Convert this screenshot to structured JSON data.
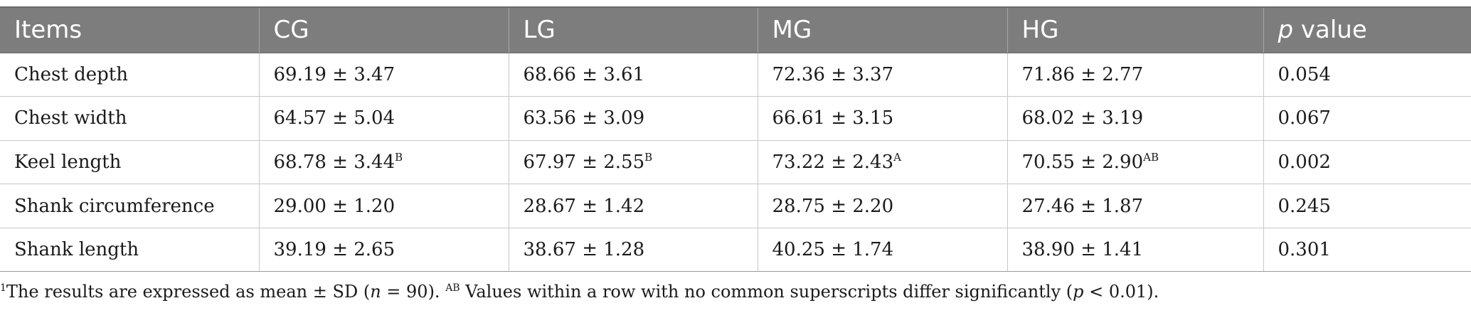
{
  "table": {
    "headers": [
      "Items",
      "CG",
      "LG",
      "MG",
      "HG",
      "value"
    ],
    "header_p_symbol": "p",
    "rows": [
      {
        "item": "Chest depth",
        "cells": [
          {
            "value": "69.19 ± 3.47",
            "sup": ""
          },
          {
            "value": "68.66 ± 3.61",
            "sup": ""
          },
          {
            "value": "72.36 ± 3.37",
            "sup": ""
          },
          {
            "value": "71.86 ± 2.77",
            "sup": ""
          }
        ],
        "p": "0.054"
      },
      {
        "item": "Chest width",
        "cells": [
          {
            "value": "64.57 ± 5.04",
            "sup": ""
          },
          {
            "value": "63.56 ± 3.09",
            "sup": ""
          },
          {
            "value": "66.61 ± 3.15",
            "sup": ""
          },
          {
            "value": "68.02 ± 3.19",
            "sup": ""
          }
        ],
        "p": "0.067"
      },
      {
        "item": "Keel length",
        "cells": [
          {
            "value": "68.78 ± 3.44",
            "sup": "B"
          },
          {
            "value": "67.97 ± 2.55",
            "sup": "B"
          },
          {
            "value": "73.22 ± 2.43",
            "sup": "A"
          },
          {
            "value": "70.55 ± 2.90",
            "sup": "AB"
          }
        ],
        "p": "0.002"
      },
      {
        "item": "Shank circumference",
        "cells": [
          {
            "value": "29.00 ± 1.20",
            "sup": ""
          },
          {
            "value": "28.67 ± 1.42",
            "sup": ""
          },
          {
            "value": "28.75 ± 2.20",
            "sup": ""
          },
          {
            "value": "27.46 ± 1.87",
            "sup": ""
          }
        ],
        "p": "0.245"
      },
      {
        "item": "Shank length",
        "cells": [
          {
            "value": "39.19 ± 2.65",
            "sup": ""
          },
          {
            "value": "38.67 ± 1.28",
            "sup": ""
          },
          {
            "value": "40.25 ± 1.74",
            "sup": ""
          },
          {
            "value": "38.90 ± 1.41",
            "sup": ""
          }
        ],
        "p": "0.301"
      }
    ]
  },
  "footnote": {
    "marker": "1",
    "text1": "The results are expressed as mean ± SD (",
    "n_symbol": "n",
    "text2": " = 90). ",
    "ab_sup": "AB",
    "text3": " Values within a row with no common superscripts differ significantly (",
    "p_symbol": "p",
    "text4": " < 0.01)."
  },
  "colors": {
    "header_bg": "#7d7d7d",
    "header_text": "#ffffff",
    "body_text": "#1a1a1a",
    "row_border": "#c8c8c8"
  }
}
